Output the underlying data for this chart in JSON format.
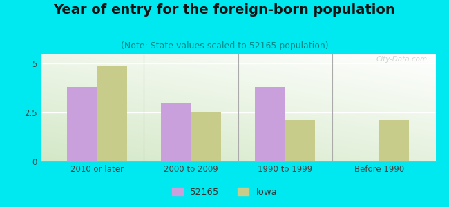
{
  "title": "Year of entry for the foreign-born population",
  "subtitle": "(Note: State values scaled to 52165 population)",
  "categories": [
    "2010 or later",
    "2000 to 2009",
    "1990 to 1999",
    "Before 1990"
  ],
  "values_52165": [
    3.8,
    3.0,
    3.8,
    0.0
  ],
  "values_iowa": [
    4.9,
    2.5,
    2.1,
    2.1
  ],
  "color_52165": "#c9a0dc",
  "color_iowa": "#c8cc8a",
  "background_outer": "#00e8f0",
  "background_inner_top": "#f5f8ee",
  "background_inner_bottom": "#d8e8c8",
  "ylim": [
    0,
    5.5
  ],
  "yticks": [
    0,
    2.5,
    5
  ],
  "bar_width": 0.32,
  "legend_label_1": "52165",
  "legend_label_2": "Iowa",
  "title_fontsize": 14,
  "subtitle_fontsize": 9,
  "tick_fontsize": 8.5,
  "legend_fontsize": 9.5,
  "watermark": "City-Data.com"
}
